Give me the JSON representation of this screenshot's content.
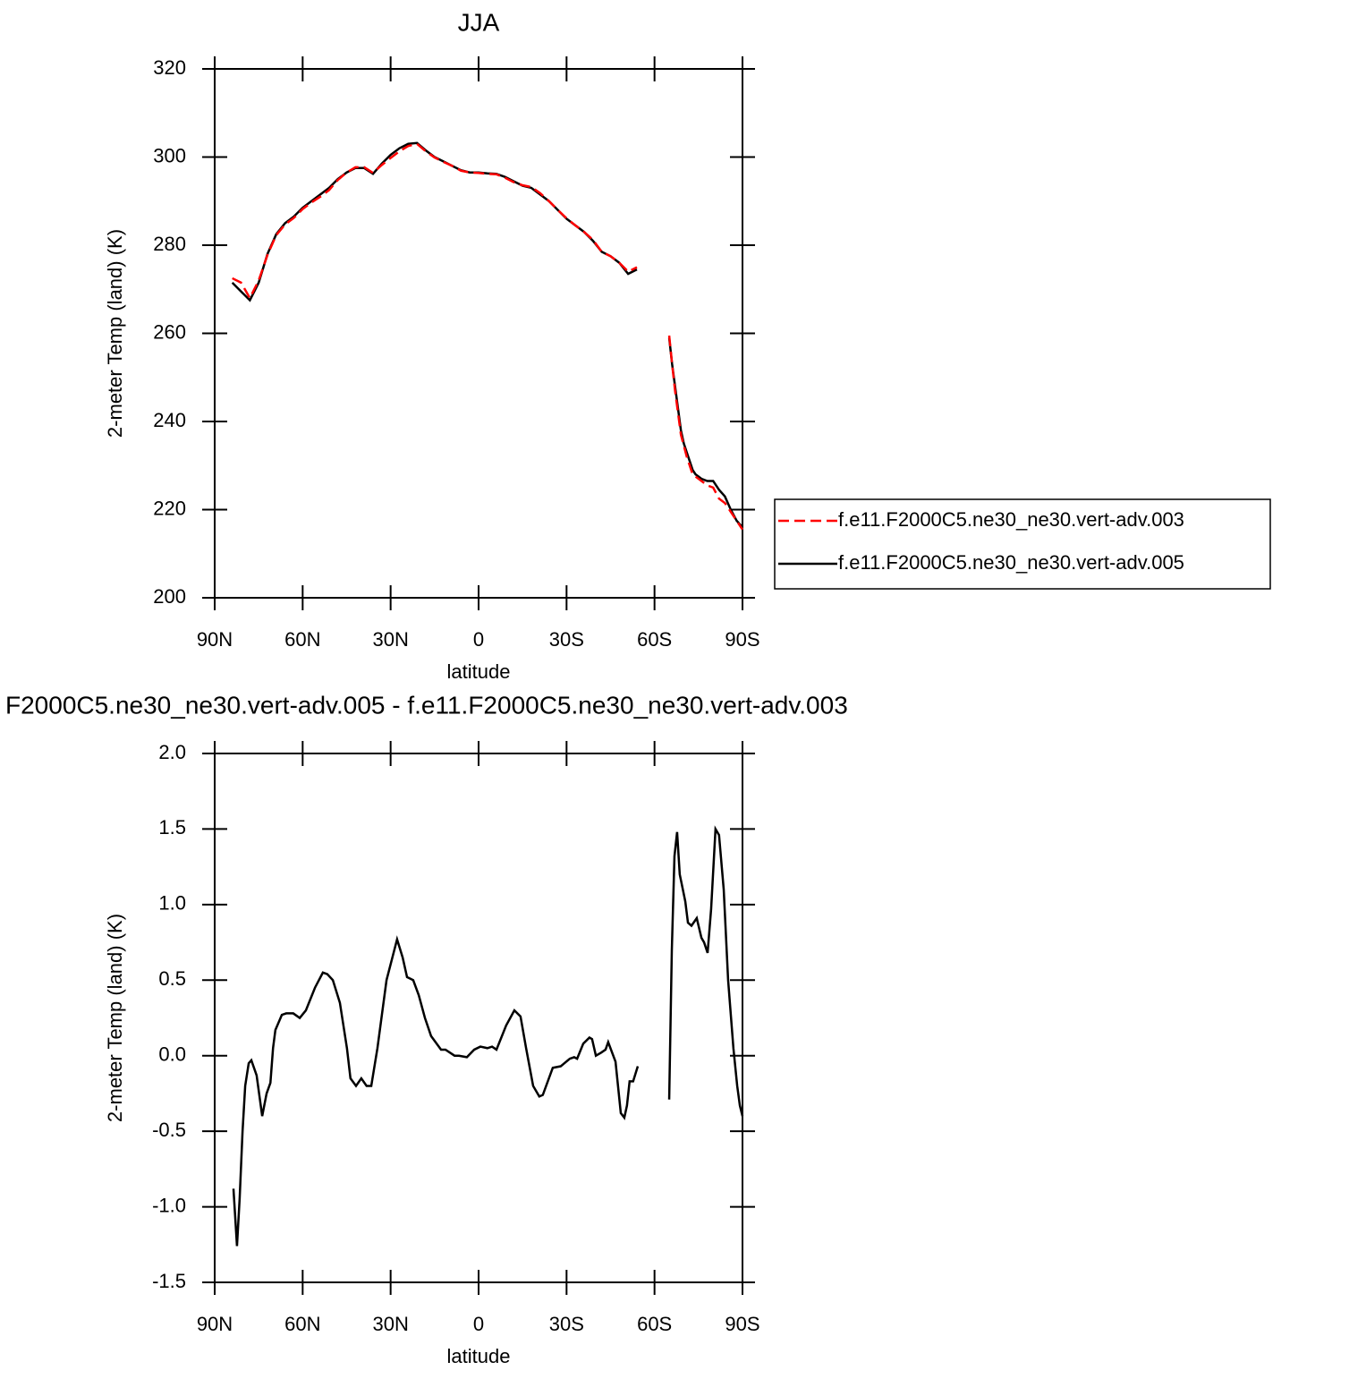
{
  "chart_data": [
    {
      "type": "line",
      "title": "JJA",
      "xlabel": "latitude",
      "ylabel": "2-meter Temp (land) (K)",
      "x": [
        84,
        81,
        78,
        75,
        72,
        69,
        66,
        63,
        60,
        57,
        54,
        51,
        48,
        45,
        42,
        39,
        36,
        33,
        30,
        27,
        24,
        21,
        18,
        15,
        12,
        9,
        6,
        3,
        0,
        -3,
        -6,
        -9,
        -12,
        -15,
        -18,
        -21,
        -24,
        -27,
        -30,
        -33,
        -36,
        -39,
        -42,
        -45,
        -48,
        -51,
        -54,
        -60,
        -65,
        -66,
        -67,
        -68,
        -69,
        -70,
        -71,
        -72,
        -73,
        -74,
        -75,
        -76,
        -78,
        -80,
        -82,
        -84,
        -86,
        -88,
        -90
      ],
      "series": [
        {
          "name": "f.e11.F2000C5.ne30_ne30.vert-adv.003",
          "color": "#ff0000",
          "dash": "dashed",
          "values": [
            272.5,
            271.5,
            268,
            272,
            277.8,
            282.3,
            284.7,
            286.2,
            288.2,
            289.7,
            291,
            292.5,
            294.8,
            296.5,
            297.7,
            297.7,
            296.4,
            298.2,
            299.8,
            301.3,
            302.5,
            303,
            301.3,
            299.9,
            298.9,
            298,
            296.9,
            296.5,
            296.4,
            296.2,
            296.1,
            295.3,
            294.3,
            293.6,
            293.2,
            291.8,
            290,
            288,
            286.1,
            284.5,
            283,
            281.2,
            278.5,
            277.5,
            276,
            274,
            275,
            null,
            259.5,
            253,
            247,
            242,
            237,
            234.5,
            232,
            230,
            228,
            227.5,
            227,
            226.5,
            225.5,
            225,
            222.5,
            221.5,
            219.5,
            217.5,
            215.5
          ]
        },
        {
          "name": "f.e11.F2000C5.ne30_ne30.vert-adv.005",
          "color": "#000000",
          "dash": "solid",
          "values": [
            271.5,
            269.5,
            267.5,
            271.5,
            278,
            282.5,
            285,
            286.5,
            288.5,
            290,
            291.5,
            293,
            295,
            296.5,
            297.5,
            297.5,
            296.2,
            298.5,
            300.5,
            302,
            303,
            303.2,
            301.5,
            300,
            299,
            298,
            297,
            296.5,
            296.5,
            296.3,
            296.2,
            295.5,
            294.5,
            293.5,
            293,
            291.5,
            290,
            288,
            286,
            284.5,
            283,
            281,
            278.5,
            277.5,
            276,
            273.5,
            274.5,
            null,
            259,
            253,
            248,
            243,
            238,
            235,
            233,
            231,
            229,
            228,
            227.5,
            227,
            226.5,
            226.5,
            224.5,
            223,
            220,
            217.5,
            216
          ]
        }
      ],
      "xlim": [
        90,
        -90
      ],
      "xticks": [
        {
          "value": 90,
          "label": "90N"
        },
        {
          "value": 60,
          "label": "60N"
        },
        {
          "value": 30,
          "label": "30N"
        },
        0,
        {
          "value": -30,
          "label": "30S"
        },
        {
          "value": -60,
          "label": "60S"
        },
        {
          "value": -90,
          "label": "90S"
        }
      ],
      "ylim": [
        200,
        320
      ],
      "yticks": [
        200,
        220,
        240,
        260,
        280,
        300,
        320
      ],
      "legend": "right"
    },
    {
      "type": "line",
      "title": "F2000C5.ne30_ne30.vert-adv.005 - f.e11.F2000C5.ne30_ne30.vert-adv.003",
      "xlabel": "latitude",
      "ylabel": "2-meter Temp (land) (K)",
      "x": [
        83.6,
        82.4,
        81.5,
        80.5,
        79.6,
        78.4,
        77.5,
        75.7,
        73.8,
        72.3,
        71.0,
        70.1,
        69.3,
        67.1,
        65.6,
        63.2,
        61.0,
        58.9,
        55.8,
        53.1,
        51.6,
        49.7,
        47.3,
        44.9,
        43.7,
        41.8,
        40.0,
        38.2,
        36.6,
        34.5,
        31.4,
        27.8,
        25.9,
        24.4,
        22.3,
        20.4,
        18.3,
        16.2,
        12.8,
        11.3,
        8.2,
        6.7,
        4.0,
        1.5,
        -0.6,
        -3.0,
        -4.6,
        -6.1,
        -9.4,
        -12.2,
        -14.3,
        -16.2,
        -18.6,
        -20.7,
        -21.9,
        -25.3,
        -28.0,
        -31.1,
        -32.6,
        -33.6,
        -35.7,
        -37.8,
        -38.7,
        -40.0,
        -41.8,
        -43.3,
        -44.2,
        -46.7,
        -48.5,
        -49.7,
        -50.6,
        -51.5,
        -52.7,
        -54.3,
        -60,
        -65.0,
        -65.9,
        -66.8,
        -67.7,
        -68.6,
        -70.5,
        -71.4,
        -72.6,
        -74.4,
        -76.0,
        -76.9,
        -78.1,
        -79.3,
        -80.8,
        -82.0,
        -83.6,
        -85.1,
        -86.9,
        -88.2,
        -89.1,
        -90
      ],
      "values": [
        -0.88,
        -1.26,
        -0.95,
        -0.5,
        -0.2,
        -0.05,
        -0.03,
        -0.13,
        -0.4,
        -0.25,
        -0.18,
        0.05,
        0.17,
        0.27,
        0.28,
        0.28,
        0.25,
        0.3,
        0.45,
        0.55,
        0.54,
        0.5,
        0.35,
        0.05,
        -0.15,
        -0.2,
        -0.15,
        -0.2,
        -0.2,
        0.05,
        0.5,
        0.77,
        0.65,
        0.52,
        0.5,
        0.4,
        0.25,
        0.13,
        0.04,
        0.04,
        0.0,
        0.0,
        -0.01,
        0.04,
        0.06,
        0.05,
        0.06,
        0.04,
        0.2,
        0.3,
        0.26,
        0.05,
        -0.2,
        -0.27,
        -0.26,
        -0.08,
        -0.07,
        -0.02,
        -0.01,
        -0.02,
        0.08,
        0.12,
        0.11,
        0.0,
        0.02,
        0.04,
        0.09,
        -0.04,
        -0.38,
        -0.41,
        -0.33,
        -0.17,
        -0.17,
        -0.07,
        null,
        -0.29,
        0.7,
        1.32,
        1.48,
        1.2,
        1.02,
        0.88,
        0.86,
        0.91,
        0.78,
        0.75,
        0.68,
        0.97,
        1.5,
        1.46,
        1.1,
        0.5,
        0.05,
        -0.2,
        -0.33,
        -0.4
      ],
      "color": "#000000",
      "xlim": [
        90,
        -90
      ],
      "xticks": [
        {
          "value": 90,
          "label": "90N"
        },
        {
          "value": 60,
          "label": "60N"
        },
        {
          "value": 30,
          "label": "30N"
        },
        0,
        {
          "value": -30,
          "label": "30S"
        },
        {
          "value": -60,
          "label": "60S"
        },
        {
          "value": -90,
          "label": "90S"
        }
      ],
      "ylim": [
        -1.5,
        2.0
      ],
      "yticks": [
        {
          "value": -1.5,
          "label": "-1.5"
        },
        {
          "value": -1.0,
          "label": "-1.0"
        },
        -0.5,
        {
          "value": 0.0,
          "label": "0.0"
        },
        0.5,
        {
          "value": 1.0,
          "label": "1.0"
        },
        1.5,
        {
          "value": 2.0,
          "label": "2.0"
        }
      ]
    }
  ]
}
